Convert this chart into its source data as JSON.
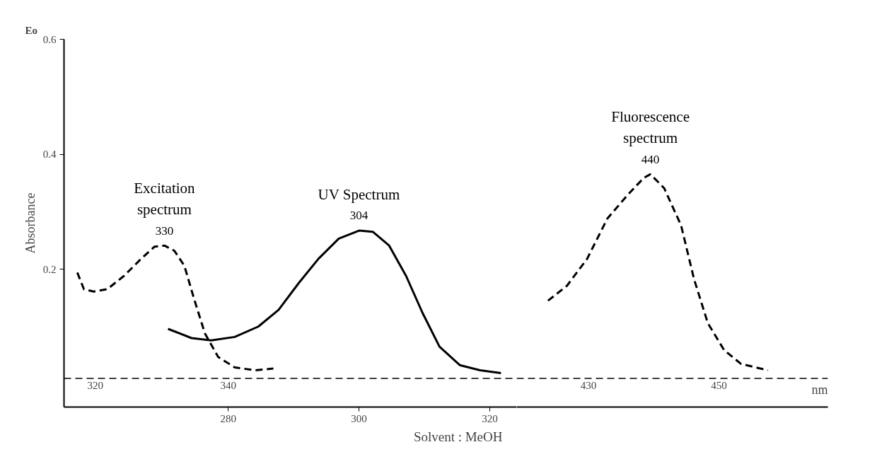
{
  "chart_data": [
    {
      "type": "line",
      "ylabel": "Absorbance",
      "xlabel": "Solvent : MeOH",
      "xlim": [
        254.9,
        324.1
      ],
      "xticks": [
        280,
        300,
        320
      ],
      "x2lim": [
        315.3,
        383.4
      ],
      "x2ticks": [
        320,
        340
      ],
      "ylim": [
        -0.04,
        0.6
      ],
      "yticks": [
        0.2,
        0.4,
        0.6
      ],
      "grid": false,
      "marker": "none",
      "ref_lines": [
        {
          "axis": "y",
          "value": 0.01,
          "line_style": "dashed",
          "color": "#000000"
        }
      ],
      "series": [
        {
          "name": "Excitation\nspectrum",
          "color": "#000000",
          "line_style": "dashed",
          "axis": "x2",
          "x": [
            317.3,
            318.3,
            319.8,
            321.8,
            324.3,
            326.9,
            328.9,
            330.4,
            331.9,
            333.4,
            334.9,
            336.5,
            338.5,
            341.0,
            344.0,
            346.8
          ],
          "values": [
            0.194,
            0.165,
            0.161,
            0.165,
            0.188,
            0.218,
            0.239,
            0.241,
            0.232,
            0.206,
            0.147,
            0.088,
            0.047,
            0.029,
            0.024,
            0.027
          ]
        },
        {
          "name": "UV Spectrum",
          "color": "#000000",
          "line_style": "solid",
          "x": [
            270.8,
            274.4,
            277.4,
            281.0,
            284.6,
            287.7,
            290.8,
            293.8,
            296.9,
            300.0,
            302.1,
            304.6,
            307.2,
            309.7,
            312.3,
            315.4,
            318.5,
            321.7
          ],
          "values": [
            0.096,
            0.08,
            0.076,
            0.082,
            0.1,
            0.129,
            0.176,
            0.218,
            0.253,
            0.267,
            0.265,
            0.241,
            0.188,
            0.124,
            0.065,
            0.033,
            0.024,
            0.019
          ]
        }
      ],
      "annotations": [
        "330",
        "304",
        "Eo"
      ]
    },
    {
      "type": "line",
      "xlabel": "nm",
      "xlim": [
        419.0,
        466.7
      ],
      "xticks": [
        430,
        450
      ],
      "ylim": [
        -0.04,
        0.6
      ],
      "yticks": [
        0.2,
        0.4,
        0.6
      ],
      "tick_labels": "x",
      "grid": false,
      "marker": "none",
      "ref_lines": [
        {
          "axis": "y",
          "value": 0.01,
          "line_style": "dashed",
          "color": "#000000"
        }
      ],
      "series": [
        {
          "name": "Fluorescence\nspectrum",
          "color": "#000000",
          "line_style": "dashed",
          "x": [
            423.8,
            426.7,
            429.8,
            432.9,
            436.0,
            438.5,
            439.5,
            441.6,
            444.2,
            446.2,
            448.3,
            450.8,
            453.4,
            457.5
          ],
          "values": [
            0.145,
            0.171,
            0.218,
            0.288,
            0.329,
            0.359,
            0.365,
            0.341,
            0.276,
            0.182,
            0.106,
            0.059,
            0.035,
            0.024
          ]
        }
      ],
      "annotations": [
        "440"
      ]
    }
  ]
}
